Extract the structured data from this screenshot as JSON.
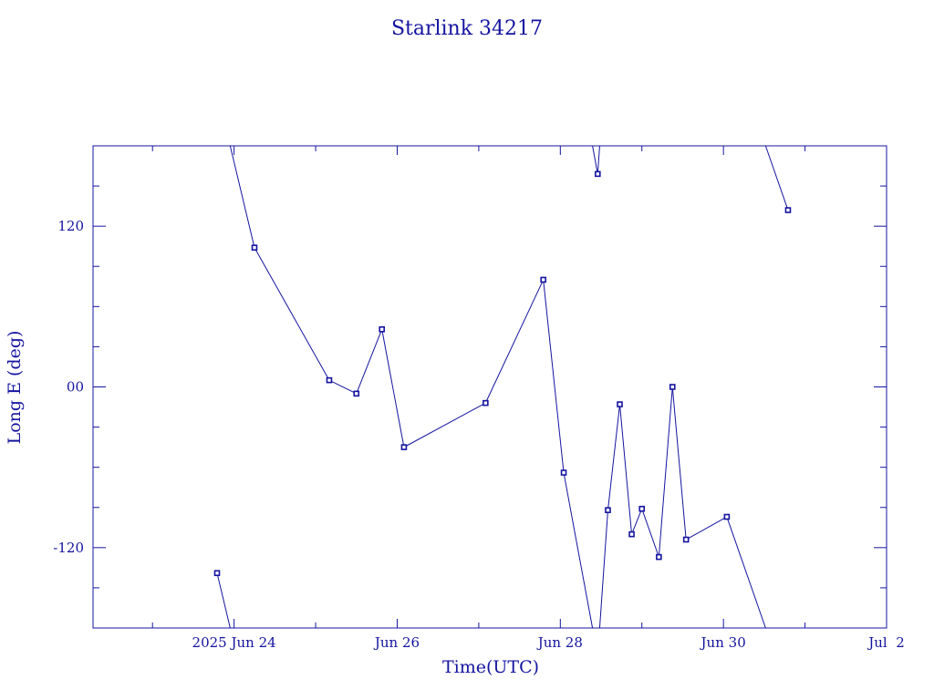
{
  "chart_data": {
    "type": "line",
    "title": "Starlink 34217",
    "xlabel": "Time(UTC)",
    "ylabel": "Long E (deg)",
    "x_axis": {
      "type": "date",
      "range": [
        "2025-06-22T06:30:00Z",
        "2025-07-02T00:00:00Z"
      ],
      "major_ticks": [
        {
          "t": "2025-06-24T00:00:00Z",
          "label": "2025 Jun 24"
        },
        {
          "t": "2025-06-26T00:00:00Z",
          "label": "Jun 26"
        },
        {
          "t": "2025-06-28T00:00:00Z",
          "label": "Jun 28"
        },
        {
          "t": "2025-06-30T00:00:00Z",
          "label": "Jun 30"
        },
        {
          "t": "2025-07-02T00:00:00Z",
          "label": "Jul  2"
        }
      ],
      "minor_tick_hours": 24
    },
    "y_axis": {
      "range": [
        -180,
        180
      ],
      "major_ticks": [
        {
          "v": 120,
          "label": "120"
        },
        {
          "v": 0,
          "label": "00"
        },
        {
          "v": -120,
          "label": "-120"
        }
      ],
      "minor_tick_step": 30
    },
    "grid": false,
    "series": [
      {
        "color": "#1414a0",
        "points": [
          {
            "t": "2025-06-23T19:00:00Z",
            "y": -139
          },
          {
            "t": "2025-06-24T06:00:00Z",
            "y": 104
          },
          {
            "t": "2025-06-25T04:00:00Z",
            "y": 5
          },
          {
            "t": "2025-06-25T12:00:00Z",
            "y": -5
          },
          {
            "t": "2025-06-25T19:30:00Z",
            "y": 43
          },
          {
            "t": "2025-06-26T02:00:00Z",
            "y": -45
          },
          {
            "t": "2025-06-27T02:00:00Z",
            "y": -12
          },
          {
            "t": "2025-06-27T19:00:00Z",
            "y": 80
          },
          {
            "t": "2025-06-28T01:00:00Z",
            "y": -64
          },
          {
            "t": "2025-06-28T11:00:00Z",
            "y": 159
          },
          {
            "t": "2025-06-28T14:00:00Z",
            "y": -92
          },
          {
            "t": "2025-06-28T17:30:00Z",
            "y": -13
          },
          {
            "t": "2025-06-28T21:00:00Z",
            "y": -110
          },
          {
            "t": "2025-06-29T00:00:00Z",
            "y": -91
          },
          {
            "t": "2025-06-29T05:00:00Z",
            "y": -127
          },
          {
            "t": "2025-06-29T09:00:00Z",
            "y": 0
          },
          {
            "t": "2025-06-29T13:00:00Z",
            "y": -114
          },
          {
            "t": "2025-06-30T01:00:00Z",
            "y": -97
          },
          {
            "t": "2025-06-30T19:00:00Z",
            "y": 132
          }
        ]
      }
    ]
  }
}
